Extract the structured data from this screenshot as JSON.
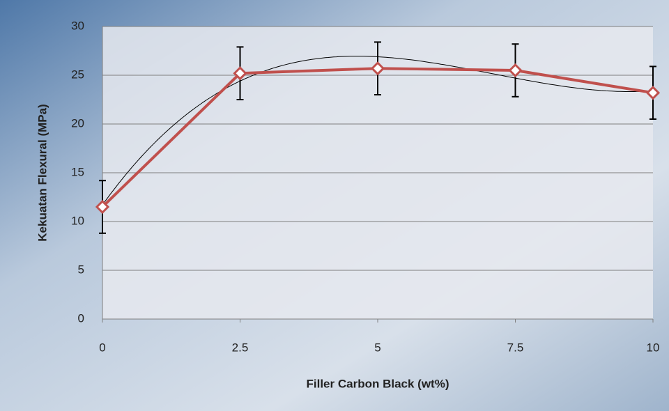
{
  "chart_data": {
    "type": "line",
    "x_label": "Filler Carbon Black (wt%)",
    "y_label": "Kekuatan Flexural (MPa)",
    "x": [
      0,
      2.5,
      5,
      7.5,
      10
    ],
    "series": [
      {
        "color": "#c0504d",
        "values": [
          11.5,
          25.2,
          25.7,
          25.5,
          23.2
        ],
        "errors": [
          2.7,
          2.7,
          2.7,
          2.7,
          2.7
        ]
      }
    ],
    "xlim": [
      0,
      10
    ],
    "xticks": [
      0,
      2.5,
      5,
      7.5,
      10
    ],
    "ylim": [
      0,
      30
    ],
    "yticks": [
      0,
      5,
      10,
      15,
      20,
      25,
      30
    ],
    "grid": true,
    "trendline": {
      "type": "polynomial",
      "order": 3,
      "color": "#000000"
    }
  }
}
